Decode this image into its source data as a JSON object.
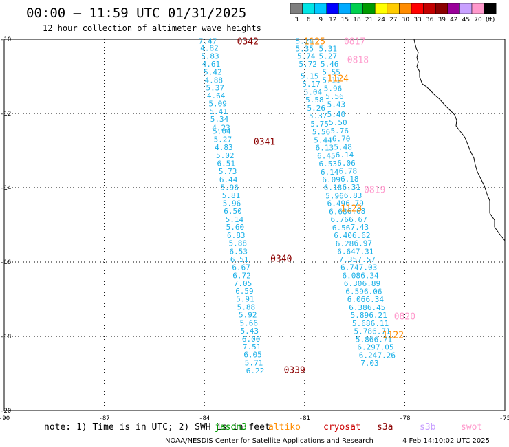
{
  "header": {
    "title": "00:00 — 11:59 UTC 01/31/2025",
    "subtitle": "12 hour collection of altimeter wave heights"
  },
  "colorbar": {
    "colors": [
      "#7f7f7f",
      "#00e5e5",
      "#00c8ff",
      "#0000ff",
      "#00aaff",
      "#00d04e",
      "#009a00",
      "#ffff00",
      "#ffcc00",
      "#ff8c00",
      "#ff0000",
      "#c40000",
      "#8b0000",
      "#990099",
      "#c8a0ff",
      "#ff99cc",
      "#000000"
    ],
    "labels": [
      "3",
      "6",
      "9",
      "12",
      "15",
      "18",
      "21",
      "24",
      "27",
      "30",
      "33",
      "36",
      "39",
      "42",
      "45",
      "70",
      "(ft)"
    ]
  },
  "note": "note: 1) Time is in UTC; 2) SWH is in feet",
  "legend": [
    {
      "name": "jason3",
      "color": "#009a00"
    },
    {
      "name": "altiko",
      "color": "#ff8c00"
    },
    {
      "name": "cryosat",
      "color": "#cc0000"
    },
    {
      "name": "s3a",
      "color": "#8b0000"
    },
    {
      "name": "s3b",
      "color": "#c8a0ff"
    },
    {
      "name": "swot",
      "color": "#ff99cc"
    }
  ],
  "footer": {
    "credit": "NOAA/NESDIS Center for Satellite Applications and Research",
    "timestamp": "4 Feb 14:10:02 UTC 2025"
  },
  "chart_data": {
    "type": "scatter",
    "title": "00:00 — 11:59 UTC 01/31/2025",
    "subtitle": "12 hour collection of altimeter wave heights",
    "xlabel": "",
    "ylabel": "",
    "xlim": [
      -90,
      -75
    ],
    "ylim": [
      -20,
      -10
    ],
    "x_ticks": [
      -90,
      -87,
      -84,
      -81,
      -78,
      -75
    ],
    "y_ticks": [
      -10,
      -12,
      -14,
      -16,
      -18,
      -20
    ],
    "grid": true,
    "units": "ft",
    "series": [
      {
        "name": "s3a",
        "color": "#1ab0e8",
        "points": [
          {
            "x": -83.9,
            "y": -10.05,
            "v": "7.47"
          },
          {
            "x": -83.85,
            "y": -10.23,
            "v": "4.82"
          },
          {
            "x": -83.83,
            "y": -10.45,
            "v": "5.83"
          },
          {
            "x": -83.8,
            "y": -10.67,
            "v": "4.61"
          },
          {
            "x": -83.75,
            "y": -10.88,
            "v": "5.42"
          },
          {
            "x": -83.72,
            "y": -11.1,
            "v": "4.88"
          },
          {
            "x": -83.68,
            "y": -11.31,
            "v": "5.37"
          },
          {
            "x": -83.65,
            "y": -11.52,
            "v": "4.64"
          },
          {
            "x": -83.6,
            "y": -11.73,
            "v": "5.09"
          },
          {
            "x": -83.58,
            "y": -11.94,
            "v": "5.41"
          },
          {
            "x": -83.55,
            "y": -12.15,
            "v": "5.34"
          },
          {
            "x": -83.5,
            "y": -12.38,
            "v": "4.23"
          },
          {
            "x": -83.48,
            "y": -12.47,
            "v": "5.04"
          },
          {
            "x": -83.45,
            "y": -12.69,
            "v": "5.27"
          },
          {
            "x": -83.42,
            "y": -12.91,
            "v": "4.83"
          },
          {
            "x": -83.38,
            "y": -13.13,
            "v": "5.02"
          },
          {
            "x": -83.35,
            "y": -13.34,
            "v": "6.51"
          },
          {
            "x": -83.3,
            "y": -13.56,
            "v": "5.73"
          },
          {
            "x": -83.28,
            "y": -13.78,
            "v": "6.44"
          },
          {
            "x": -83.25,
            "y": -13.99,
            "v": "5.96"
          },
          {
            "x": -83.2,
            "y": -14.2,
            "v": "5.81"
          },
          {
            "x": -83.18,
            "y": -14.42,
            "v": "5.96"
          },
          {
            "x": -83.15,
            "y": -14.63,
            "v": "6.50"
          },
          {
            "x": -83.1,
            "y": -14.85,
            "v": "5.14"
          },
          {
            "x": -83.08,
            "y": -15.06,
            "v": "5.60"
          },
          {
            "x": -83.05,
            "y": -15.28,
            "v": "6.83"
          },
          {
            "x": -83.0,
            "y": -15.49,
            "v": "5.88"
          },
          {
            "x": -82.98,
            "y": -15.71,
            "v": "6.53"
          },
          {
            "x": -82.95,
            "y": -15.93,
            "v": "6.51"
          },
          {
            "x": -82.9,
            "y": -16.14,
            "v": "6.67"
          },
          {
            "x": -82.88,
            "y": -16.36,
            "v": "6.72"
          },
          {
            "x": -82.85,
            "y": -16.57,
            "v": "7.05"
          },
          {
            "x": -82.8,
            "y": -16.78,
            "v": "6.59"
          },
          {
            "x": -82.78,
            "y": -16.99,
            "v": "5.91"
          },
          {
            "x": -82.75,
            "y": -17.21,
            "v": "5.88"
          },
          {
            "x": -82.7,
            "y": -17.42,
            "v": "5.92"
          },
          {
            "x": -82.67,
            "y": -17.64,
            "v": "5.66"
          },
          {
            "x": -82.65,
            "y": -17.85,
            "v": "5.43"
          },
          {
            "x": -82.6,
            "y": -18.07,
            "v": "6.00"
          },
          {
            "x": -82.58,
            "y": -18.28,
            "v": "7.51"
          },
          {
            "x": -82.55,
            "y": -18.49,
            "v": "6.05"
          },
          {
            "x": -82.52,
            "y": -18.71,
            "v": "5.71"
          },
          {
            "x": -82.48,
            "y": -18.93,
            "v": "6.22"
          }
        ]
      },
      {
        "name": "track-b",
        "color": "#1ab0e8",
        "points": [
          {
            "x": -81.0,
            "y": -10.05,
            "v": "5.24"
          },
          {
            "x": -81.0,
            "y": -10.25,
            "v": "5.35"
          },
          {
            "x": -80.95,
            "y": -10.45,
            "v": "5.74"
          },
          {
            "x": -80.9,
            "y": -10.67,
            "v": "5.72"
          },
          {
            "x": -80.85,
            "y": -10.99,
            "v": "5.15"
          },
          {
            "x": -80.8,
            "y": -11.2,
            "v": "5.17"
          },
          {
            "x": -80.75,
            "y": -11.42,
            "v": "5.04"
          },
          {
            "x": -80.7,
            "y": -11.63,
            "v": "5.58"
          },
          {
            "x": -80.65,
            "y": -11.85,
            "v": "5.26"
          },
          {
            "x": -80.6,
            "y": -12.06,
            "v": "5.37"
          },
          {
            "x": -80.55,
            "y": -12.28,
            "v": "5.75"
          },
          {
            "x": -80.5,
            "y": -12.49,
            "v": "5.56"
          },
          {
            "x": -80.45,
            "y": -12.71,
            "v": "5.44"
          },
          {
            "x": -80.4,
            "y": -12.92,
            "v": "6.13"
          },
          {
            "x": -80.35,
            "y": -13.14,
            "v": "6.45"
          },
          {
            "x": -80.3,
            "y": -13.35,
            "v": "6.53"
          },
          {
            "x": -80.25,
            "y": -13.57,
            "v": "6.14"
          },
          {
            "x": -80.2,
            "y": -13.78,
            "v": "6.09"
          },
          {
            "x": -80.15,
            "y": -13.99,
            "v": "6.18"
          },
          {
            "x": -80.1,
            "y": -14.21,
            "v": "5.96"
          },
          {
            "x": -80.05,
            "y": -14.42,
            "v": "6.49"
          },
          {
            "x": -80.0,
            "y": -14.64,
            "v": "6.68"
          },
          {
            "x": -79.95,
            "y": -14.85,
            "v": "6.76"
          },
          {
            "x": -79.9,
            "y": -15.07,
            "v": "6.56"
          },
          {
            "x": -79.85,
            "y": -15.28,
            "v": "6.40"
          },
          {
            "x": -79.8,
            "y": -15.5,
            "v": "6.28"
          },
          {
            "x": -79.75,
            "y": -15.71,
            "v": "6.64"
          },
          {
            "x": -79.7,
            "y": -15.93,
            "v": "7.35"
          },
          {
            "x": -79.65,
            "y": -16.14,
            "v": "6.74"
          },
          {
            "x": -79.6,
            "y": -16.36,
            "v": "6.08"
          },
          {
            "x": -79.55,
            "y": -16.57,
            "v": "6.30"
          },
          {
            "x": -79.5,
            "y": -16.79,
            "v": "6.59"
          },
          {
            "x": -79.45,
            "y": -17.0,
            "v": "6.06"
          },
          {
            "x": -79.4,
            "y": -17.22,
            "v": "6.38"
          },
          {
            "x": -79.35,
            "y": -17.43,
            "v": "5.89"
          },
          {
            "x": -79.3,
            "y": -17.65,
            "v": "5.68"
          },
          {
            "x": -79.25,
            "y": -17.86,
            "v": "5.78"
          },
          {
            "x": -79.2,
            "y": -18.08,
            "v": "5.86"
          },
          {
            "x": -79.15,
            "y": -18.29,
            "v": "6.29"
          },
          {
            "x": -79.1,
            "y": -18.51,
            "v": "6.24"
          },
          {
            "x": -79.05,
            "y": -18.72,
            "v": "7.03"
          }
        ]
      },
      {
        "name": "track-c",
        "color": "#1ab0e8",
        "points": [
          {
            "x": -80.3,
            "y": -10.25,
            "v": "5.31"
          },
          {
            "x": -80.3,
            "y": -10.45,
            "v": "5.27"
          },
          {
            "x": -80.25,
            "y": -10.67,
            "v": "5.46"
          },
          {
            "x": -80.2,
            "y": -10.88,
            "v": "5.55"
          },
          {
            "x": -80.2,
            "y": -11.1,
            "v": "5.11"
          },
          {
            "x": -80.15,
            "y": -11.32,
            "v": "5.96"
          },
          {
            "x": -80.1,
            "y": -11.54,
            "v": "5.56"
          },
          {
            "x": -80.05,
            "y": -11.75,
            "v": "5.43"
          },
          {
            "x": -80.05,
            "y": -12.02,
            "v": "5.40"
          },
          {
            "x": -80.0,
            "y": -12.24,
            "v": "5.50"
          },
          {
            "x": -79.95,
            "y": -12.46,
            "v": "5.76"
          },
          {
            "x": -79.9,
            "y": -12.68,
            "v": "6.70"
          },
          {
            "x": -79.85,
            "y": -12.9,
            "v": "5.48"
          },
          {
            "x": -79.8,
            "y": -13.11,
            "v": "6.14"
          },
          {
            "x": -79.75,
            "y": -13.33,
            "v": "6.06"
          },
          {
            "x": -79.7,
            "y": -13.55,
            "v": "6.78"
          },
          {
            "x": -79.65,
            "y": -13.76,
            "v": "6.18"
          },
          {
            "x": -79.6,
            "y": -13.98,
            "v": "6.31"
          },
          {
            "x": -79.55,
            "y": -14.2,
            "v": "6.83"
          },
          {
            "x": -79.5,
            "y": -14.42,
            "v": "6.79"
          },
          {
            "x": -79.45,
            "y": -14.63,
            "v": "6.68"
          },
          {
            "x": -79.4,
            "y": -14.85,
            "v": "6.67"
          },
          {
            "x": -79.35,
            "y": -15.06,
            "v": "7.43"
          },
          {
            "x": -79.3,
            "y": -15.28,
            "v": "6.62"
          },
          {
            "x": -79.25,
            "y": -15.49,
            "v": "6.97"
          },
          {
            "x": -79.2,
            "y": -15.71,
            "v": "7.31"
          },
          {
            "x": -79.15,
            "y": -15.93,
            "v": "7.57"
          },
          {
            "x": -79.1,
            "y": -16.14,
            "v": "7.03"
          },
          {
            "x": -79.05,
            "y": -16.36,
            "v": "6.34"
          },
          {
            "x": -79.0,
            "y": -16.57,
            "v": "6.89"
          },
          {
            "x": -78.95,
            "y": -16.79,
            "v": "6.06"
          },
          {
            "x": -78.9,
            "y": -17.0,
            "v": "6.34"
          },
          {
            "x": -78.85,
            "y": -17.22,
            "v": "6.45"
          },
          {
            "x": -78.8,
            "y": -17.43,
            "v": "6.21"
          },
          {
            "x": -78.75,
            "y": -17.65,
            "v": "6.11"
          },
          {
            "x": -78.7,
            "y": -17.86,
            "v": "6.71"
          },
          {
            "x": -78.65,
            "y": -18.08,
            "v": "6.71"
          },
          {
            "x": -78.6,
            "y": -18.29,
            "v": "7.05"
          },
          {
            "x": -78.55,
            "y": -18.51,
            "v": "7.26"
          }
        ]
      }
    ],
    "pass_labels": [
      {
        "text": "0342",
        "x": -82.7,
        "y": -10.05,
        "color": "#8b0000"
      },
      {
        "text": "0341",
        "x": -82.2,
        "y": -12.75,
        "color": "#8b0000"
      },
      {
        "text": "0340",
        "x": -81.7,
        "y": -15.9,
        "color": "#8b0000"
      },
      {
        "text": "0339",
        "x": -81.3,
        "y": -18.9,
        "color": "#8b0000"
      },
      {
        "text": "1125",
        "x": -80.7,
        "y": -10.05,
        "color": "#ff8c00"
      },
      {
        "text": "1124",
        "x": -80.0,
        "y": -11.05,
        "color": "#ff8c00"
      },
      {
        "text": "1123",
        "x": -79.6,
        "y": -14.55,
        "color": "#ff8c00"
      },
      {
        "text": "1122",
        "x": -78.35,
        "y": -17.95,
        "color": "#ff8c00"
      },
      {
        "text": "0817",
        "x": -79.5,
        "y": -10.05,
        "color": "#ff99cc"
      },
      {
        "text": "0818",
        "x": -79.4,
        "y": -10.55,
        "color": "#ff99cc"
      },
      {
        "text": "0819",
        "x": -78.9,
        "y": -14.05,
        "color": "#ff99cc"
      },
      {
        "text": "0820",
        "x": -78.0,
        "y": -17.45,
        "color": "#ff99cc"
      }
    ]
  }
}
